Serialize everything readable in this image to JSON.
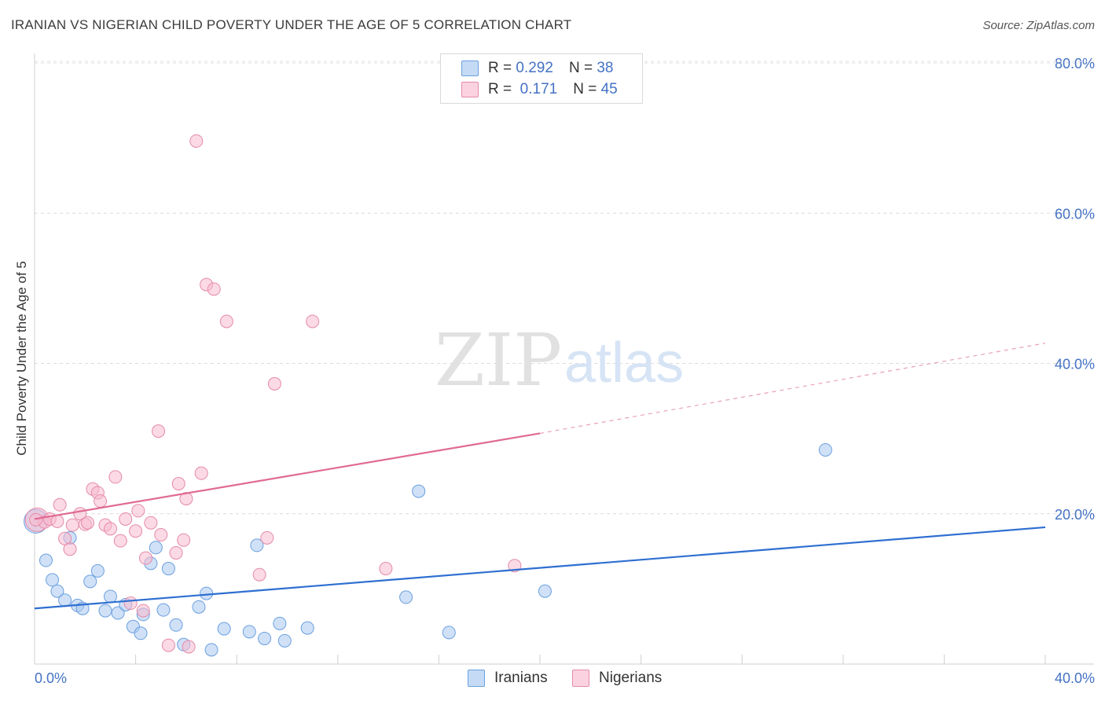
{
  "title": "IRANIAN VS NIGERIAN CHILD POVERTY UNDER THE AGE OF 5 CORRELATION CHART",
  "source": "Source: ZipAtlas.com",
  "watermark": {
    "zip": "ZIP",
    "atlas": "atlas"
  },
  "legend": {
    "rows": [
      {
        "r_label": "R =",
        "r_value": "0.292",
        "n_label": "N =",
        "n_value": "38",
        "color": "#aac8f0"
      },
      {
        "r_label": "R =",
        "r_value": " 0.171",
        "n_label": "N =",
        "n_value": "45",
        "color": "#f7bcd0"
      }
    ]
  },
  "bottom_legend": [
    {
      "label": "Iranians",
      "color": "#aac8f0"
    },
    {
      "label": "Nigerians",
      "color": "#f7bcd0"
    }
  ],
  "chart_data": {
    "type": "scatter",
    "title": "IRANIAN VS NIGERIAN CHILD POVERTY UNDER THE AGE OF 5 CORRELATION CHART",
    "xlabel": "",
    "ylabel": "Child Poverty Under the Age of 5",
    "xlim": [
      0,
      40
    ],
    "ylim": [
      0,
      80
    ],
    "x_tick_labels": [
      "0.0%",
      "40.0%"
    ],
    "y_tick_labels": [
      "20.0%",
      "40.0%",
      "60.0%",
      "80.0%"
    ],
    "y_ticks": [
      20,
      40,
      60,
      80
    ],
    "grid": true,
    "legend_position": "top-center",
    "series": [
      {
        "name": "Iranians",
        "color": "#6a9fe0",
        "fill": "#aac8f0",
        "r": 0.292,
        "n": 38,
        "trend": {
          "x": [
            0,
            40
          ],
          "y": [
            7.4,
            18.2
          ],
          "dashed_after": null
        },
        "points": [
          [
            0.05,
            19.0
          ],
          [
            0.45,
            13.8
          ],
          [
            0.7,
            11.2
          ],
          [
            0.9,
            9.7
          ],
          [
            1.2,
            8.5
          ],
          [
            1.4,
            16.8
          ],
          [
            1.7,
            7.8
          ],
          [
            1.9,
            7.4
          ],
          [
            2.2,
            11.0
          ],
          [
            2.5,
            12.4
          ],
          [
            2.8,
            7.1
          ],
          [
            3.0,
            9.0
          ],
          [
            3.3,
            6.8
          ],
          [
            3.6,
            7.9
          ],
          [
            3.9,
            5.0
          ],
          [
            4.2,
            4.1
          ],
          [
            4.3,
            6.6
          ],
          [
            4.6,
            13.4
          ],
          [
            4.8,
            15.5
          ],
          [
            5.1,
            7.2
          ],
          [
            5.3,
            12.7
          ],
          [
            5.6,
            5.2
          ],
          [
            5.9,
            2.6
          ],
          [
            6.5,
            7.6
          ],
          [
            6.8,
            9.4
          ],
          [
            7.0,
            1.9
          ],
          [
            7.5,
            4.7
          ],
          [
            8.5,
            4.3
          ],
          [
            8.8,
            15.8
          ],
          [
            9.1,
            3.4
          ],
          [
            9.7,
            5.4
          ],
          [
            9.9,
            3.1
          ],
          [
            10.8,
            4.8
          ],
          [
            14.7,
            8.9
          ],
          [
            15.2,
            23.0
          ],
          [
            16.4,
            4.2
          ],
          [
            20.2,
            9.7
          ],
          [
            31.3,
            28.5
          ]
        ]
      },
      {
        "name": "Nigerians",
        "color": "#e58aa8",
        "fill": "#f7bcd0",
        "r": 0.171,
        "n": 45,
        "trend": {
          "x": [
            0,
            20
          ],
          "y": [
            19.3,
            30.7
          ],
          "dashed_to": [
            40,
            42.7
          ]
        },
        "points": [
          [
            0.1,
            19.2
          ],
          [
            0.4,
            18.9
          ],
          [
            0.6,
            19.3
          ],
          [
            0.9,
            19.0
          ],
          [
            1.0,
            21.2
          ],
          [
            1.2,
            16.7
          ],
          [
            1.4,
            15.3
          ],
          [
            1.5,
            18.5
          ],
          [
            1.8,
            20.0
          ],
          [
            2.0,
            18.6
          ],
          [
            2.1,
            18.8
          ],
          [
            2.3,
            23.3
          ],
          [
            2.5,
            22.8
          ],
          [
            2.6,
            21.7
          ],
          [
            2.8,
            18.5
          ],
          [
            3.0,
            18.0
          ],
          [
            3.2,
            24.9
          ],
          [
            3.4,
            16.4
          ],
          [
            3.6,
            19.3
          ],
          [
            3.8,
            8.1
          ],
          [
            4.0,
            17.7
          ],
          [
            4.1,
            20.4
          ],
          [
            4.3,
            7.1
          ],
          [
            4.4,
            14.1
          ],
          [
            4.6,
            18.8
          ],
          [
            4.9,
            31.0
          ],
          [
            5.0,
            17.2
          ],
          [
            5.3,
            2.5
          ],
          [
            5.6,
            14.8
          ],
          [
            5.7,
            24.0
          ],
          [
            5.9,
            16.5
          ],
          [
            6.0,
            22.0
          ],
          [
            6.1,
            2.3
          ],
          [
            6.4,
            69.6
          ],
          [
            6.6,
            25.4
          ],
          [
            6.8,
            50.5
          ],
          [
            7.1,
            49.9
          ],
          [
            7.6,
            45.6
          ],
          [
            8.9,
            11.9
          ],
          [
            9.2,
            16.8
          ],
          [
            9.5,
            37.3
          ],
          [
            11.0,
            45.6
          ],
          [
            13.9,
            12.7
          ],
          [
            19.0,
            13.1
          ],
          [
            0.05,
            19.2
          ]
        ]
      }
    ]
  }
}
